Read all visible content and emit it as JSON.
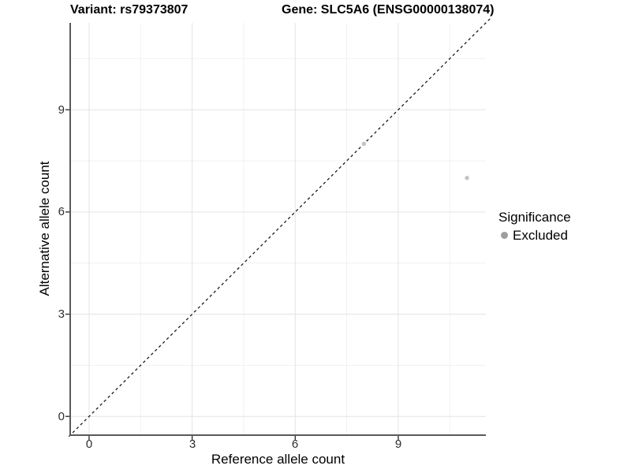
{
  "chart_data": {
    "type": "scatter",
    "titles": {
      "left": "Variant: rs79373807",
      "right": "Gene: SLC5A6 (ENSG00000138074)"
    },
    "xlabel": "Reference allele count",
    "ylabel": "Alternative allele count",
    "xlim": [
      -0.55,
      11.55
    ],
    "ylim": [
      -0.55,
      11.55
    ],
    "xticks": [
      0,
      3,
      6,
      9
    ],
    "yticks": [
      0,
      3,
      6,
      9
    ],
    "minor_ticks": [
      1.5,
      4.5,
      7.5,
      10.5
    ],
    "grid": "major and minor, light gray on white background",
    "points": [
      {
        "x": 8,
        "y": 8,
        "series": "Excluded"
      },
      {
        "x": 11,
        "y": 7,
        "series": "Excluded"
      }
    ],
    "identity_line": {
      "slope": 1,
      "intercept": 0,
      "style": "dashed",
      "color": "#1a1a1a"
    },
    "legend": {
      "position": "right",
      "title": "Significance",
      "items": [
        {
          "label": "Excluded",
          "color": "#9e9e9e"
        }
      ]
    },
    "colors": {
      "point": "#c2c2c2",
      "legend_dot": "#9e9e9e",
      "grid_major": "#e4e4e4",
      "grid_minor": "#f1f1f1",
      "axis_line": "#595959",
      "tick_mark": "#333333",
      "dashed_line": "#1a1a1a"
    }
  }
}
